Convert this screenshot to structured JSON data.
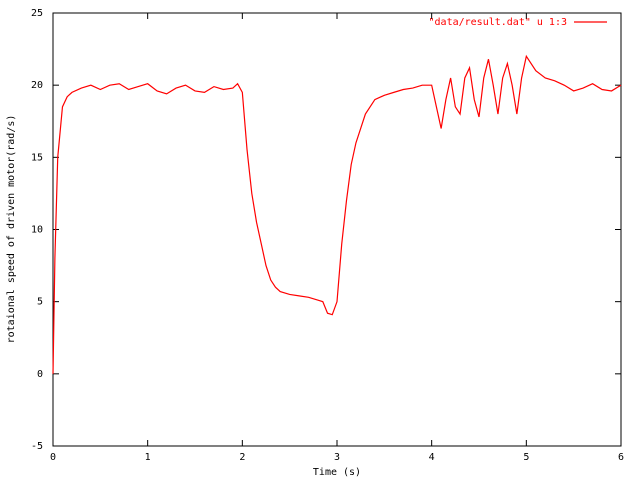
{
  "chart_data": {
    "type": "line",
    "xlabel": "Time (s)",
    "ylabel": "rotaional speed of driven motor(rad/s)",
    "xlim": [
      0,
      6
    ],
    "xticks": [
      0,
      1,
      2,
      3,
      4,
      5,
      6
    ],
    "ylim": [
      -5,
      25
    ],
    "yticks": [
      -5,
      0,
      5,
      10,
      15,
      20,
      25
    ],
    "legend": "top-right",
    "x": [
      0,
      0.02,
      0.05,
      0.1,
      0.15,
      0.2,
      0.3,
      0.4,
      0.5,
      0.6,
      0.7,
      0.8,
      0.9,
      1.0,
      1.1,
      1.2,
      1.3,
      1.4,
      1.5,
      1.6,
      1.7,
      1.8,
      1.9,
      1.95,
      2.0,
      2.05,
      2.1,
      2.15,
      2.2,
      2.25,
      2.3,
      2.35,
      2.4,
      2.5,
      2.6,
      2.7,
      2.8,
      2.85,
      2.9,
      2.95,
      3.0,
      3.05,
      3.1,
      3.15,
      3.2,
      3.3,
      3.4,
      3.5,
      3.6,
      3.7,
      3.8,
      3.9,
      4.0,
      4.05,
      4.1,
      4.15,
      4.2,
      4.25,
      4.3,
      4.35,
      4.4,
      4.45,
      4.5,
      4.55,
      4.6,
      4.65,
      4.7,
      4.75,
      4.8,
      4.85,
      4.9,
      4.95,
      5.0,
      5.1,
      5.2,
      5.3,
      5.4,
      5.5,
      5.6,
      5.7,
      5.8,
      5.9,
      6.0
    ],
    "series": [
      {
        "name": "\"data/result.dat\" u 1:3",
        "color": "#ff0000",
        "values": [
          0,
          8,
          15,
          18.5,
          19.2,
          19.5,
          19.8,
          20,
          19.7,
          20,
          20.1,
          19.7,
          19.9,
          20.1,
          19.6,
          19.4,
          19.8,
          20,
          19.6,
          19.5,
          19.9,
          19.7,
          19.8,
          20.1,
          19.5,
          15.5,
          12.5,
          10.5,
          9,
          7.5,
          6.5,
          6,
          5.7,
          5.5,
          5.4,
          5.3,
          5.1,
          5.0,
          4.2,
          4.1,
          5,
          9,
          12,
          14.5,
          16,
          18,
          19,
          19.3,
          19.5,
          19.7,
          19.8,
          20,
          20,
          18.5,
          17,
          19,
          20.5,
          18.5,
          18,
          20.5,
          21.2,
          19,
          17.8,
          20.5,
          21.8,
          20,
          18,
          20.5,
          21.5,
          20,
          18,
          20.5,
          22,
          21,
          20.5,
          20.3,
          20,
          19.6,
          19.8,
          20.1,
          19.7,
          19.6,
          20
        ]
      }
    ]
  }
}
